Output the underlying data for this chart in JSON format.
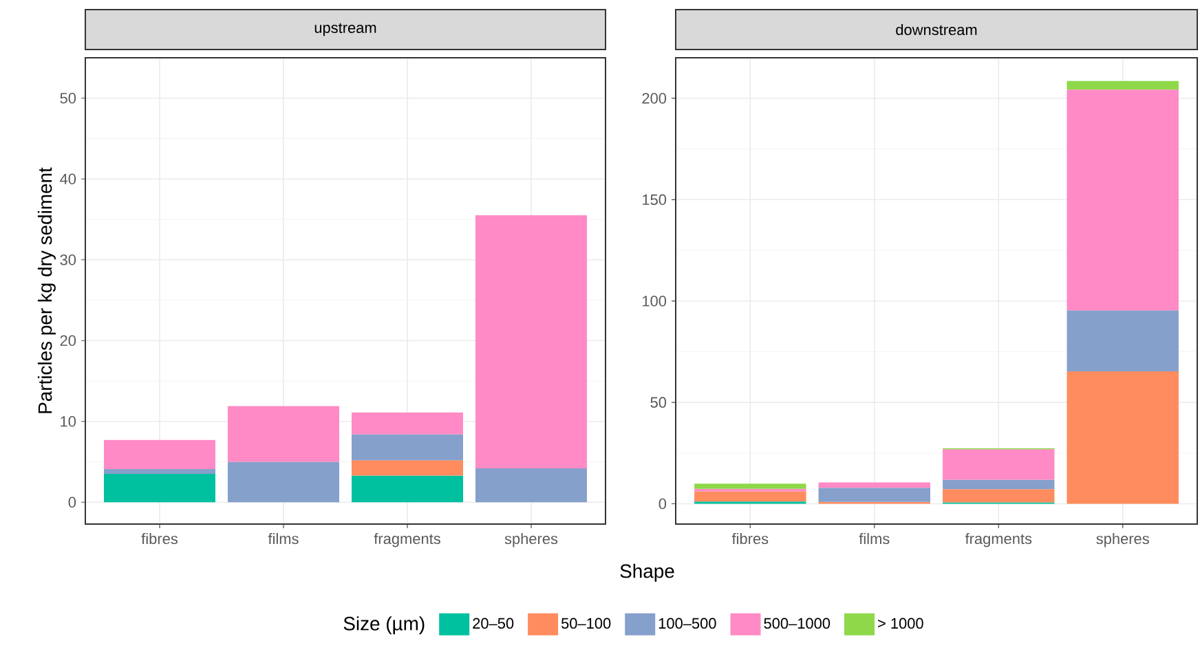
{
  "chart_data": [
    {
      "type": "bar",
      "title": "upstream",
      "ylabel": "Particles per kg dry sediment",
      "xlabel": "Shape",
      "legend_title": "Size (µm)",
      "legend": "bottom",
      "stacked": true,
      "grid": true,
      "categories": [
        "fibres",
        "films",
        "fragments",
        "spheres"
      ],
      "ylim": [
        -2.7,
        55
      ],
      "yticks": [
        0,
        10,
        20,
        30,
        40,
        50
      ],
      "series": [
        {
          "name": "20–50",
          "color": "#00c19f",
          "values": [
            3.5,
            null,
            3.3,
            null
          ]
        },
        {
          "name": "50–100",
          "color": "#ff8c5e",
          "values": [
            null,
            null,
            1.9,
            null
          ]
        },
        {
          "name": "100–500",
          "color": "#85a0cb",
          "values": [
            0.6,
            5.0,
            3.2,
            4.2
          ]
        },
        {
          "name": "500–1000",
          "color": "#ff8ac5",
          "values": [
            3.6,
            6.9,
            2.7,
            31.3
          ]
        },
        {
          "name": "> 1000",
          "color": "#8ed84a",
          "values": [
            null,
            null,
            null,
            null
          ]
        }
      ]
    },
    {
      "type": "bar",
      "title": "downstream",
      "stacked": true,
      "grid": true,
      "categories": [
        "fibres",
        "films",
        "fragments",
        "spheres"
      ],
      "ylim": [
        -10,
        220
      ],
      "yticks": [
        0,
        50,
        100,
        150,
        200
      ],
      "series": [
        {
          "color": "#00c19f",
          "values": [
            1.1,
            null,
            0.7,
            null
          ]
        },
        {
          "color": "#ff8c5e",
          "values": [
            5.0,
            0.9,
            6.5,
            65.3
          ]
        },
        {
          "color": "#85a0cb",
          "values": [
            null,
            7.0,
            4.7,
            30.1
          ]
        },
        {
          "color": "#ff8ac5",
          "values": [
            1.3,
            2.6,
            15.0,
            108.9
          ]
        },
        {
          "color": "#8ed84a",
          "values": [
            2.5,
            null,
            0.5,
            4.2
          ]
        }
      ]
    }
  ]
}
